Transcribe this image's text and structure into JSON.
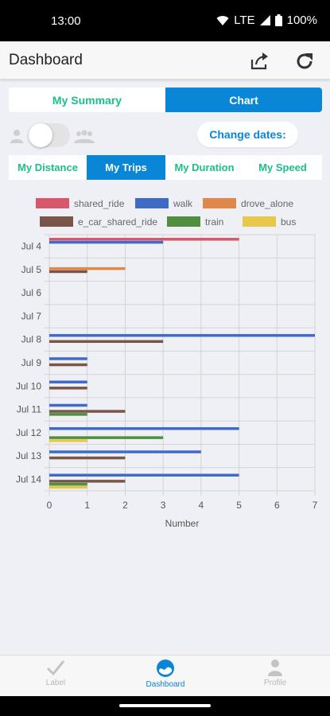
{
  "status_bar": {
    "time": "13:00",
    "network": "LTE",
    "battery": "100%"
  },
  "app_bar": {
    "title": "Dashboard",
    "share_icon": "share-icon",
    "refresh_icon": "refresh-icon"
  },
  "view_tabs": [
    {
      "label": "My Summary",
      "active": false
    },
    {
      "label": "Chart",
      "active": true
    }
  ],
  "controls": {
    "change_dates_label": "Change dates:",
    "toggle_on": false
  },
  "metric_tabs": [
    {
      "label": "My Distance",
      "active": false
    },
    {
      "label": "My Trips",
      "active": true
    },
    {
      "label": "My Duration",
      "active": false
    },
    {
      "label": "My Speed",
      "active": false
    }
  ],
  "colors": {
    "accent": "#0a86d6",
    "accent_text": "#1bbf8c"
  },
  "chart_data": {
    "type": "bar",
    "orientation": "horizontal",
    "categories": [
      "Jul 4",
      "Jul 5",
      "Jul 6",
      "Jul 7",
      "Jul 8",
      "Jul 9",
      "Jul 10",
      "Jul 11",
      "Jul 12",
      "Jul 13",
      "Jul 14"
    ],
    "series": [
      {
        "name": "shared_ride",
        "color": "#d9576b",
        "values": [
          5,
          0,
          0,
          0,
          0,
          0,
          0,
          0,
          0,
          0,
          0
        ]
      },
      {
        "name": "walk",
        "color": "#3f6bc7",
        "values": [
          3,
          0,
          0,
          0,
          7,
          1,
          1,
          1,
          5,
          4,
          5
        ]
      },
      {
        "name": "drove_alone",
        "color": "#e0874a",
        "values": [
          0,
          2,
          0,
          0,
          0,
          0,
          0,
          0,
          0,
          0,
          0
        ]
      },
      {
        "name": "e_car_shared_ride",
        "color": "#7a5548",
        "values": [
          0,
          1,
          0,
          0,
          3,
          1,
          1,
          2,
          0,
          2,
          2
        ]
      },
      {
        "name": "train",
        "color": "#4f8f3f",
        "values": [
          0,
          0,
          0,
          0,
          0,
          0,
          0,
          1,
          3,
          0,
          1
        ]
      },
      {
        "name": "bus",
        "color": "#e8c84a",
        "values": [
          0,
          0,
          0,
          0,
          0,
          0,
          0,
          0,
          1,
          0,
          1
        ]
      }
    ],
    "xlabel": "Number",
    "ylabel": "",
    "xlim": [
      0,
      7
    ],
    "x_ticks": [
      "0",
      "1",
      "2",
      "3",
      "4",
      "5",
      "6",
      "7"
    ],
    "grid": true,
    "legend_position": "top"
  },
  "bottom_nav": [
    {
      "label": "Label",
      "icon": "check-icon",
      "active": false
    },
    {
      "label": "Dashboard",
      "icon": "dashboard-icon",
      "active": true
    },
    {
      "label": "Profile",
      "icon": "profile-icon",
      "active": false
    }
  ]
}
